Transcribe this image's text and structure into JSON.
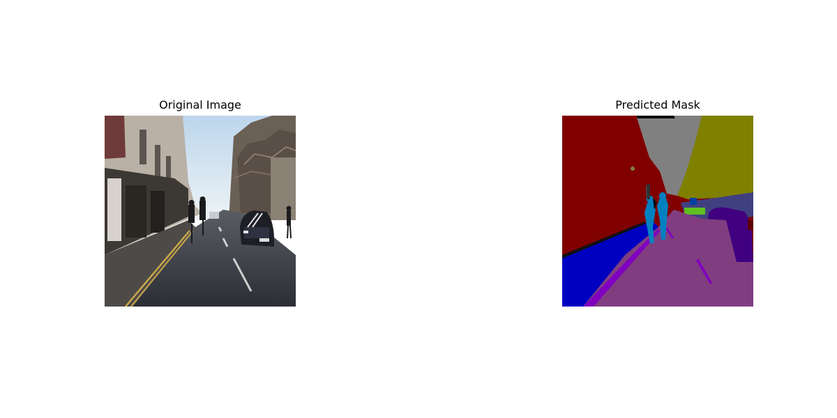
{
  "figure": {
    "left_title": "Original Image",
    "right_title": "Predicted Mask"
  },
  "colors": {
    "background": "#ffffff",
    "sky": "#cfe2f0",
    "road": "#3a3d45",
    "mask_building": "#800000",
    "mask_sky": "#808080",
    "mask_tree": "#808000",
    "mask_road": "#803e80",
    "mask_sidewalk": "#0000c0",
    "mask_car": "#400080",
    "mask_pedestrian": "#0080c0",
    "mask_fence": "#404080",
    "mask_sign": "#c08000",
    "mask_lane": "#8000c0"
  }
}
